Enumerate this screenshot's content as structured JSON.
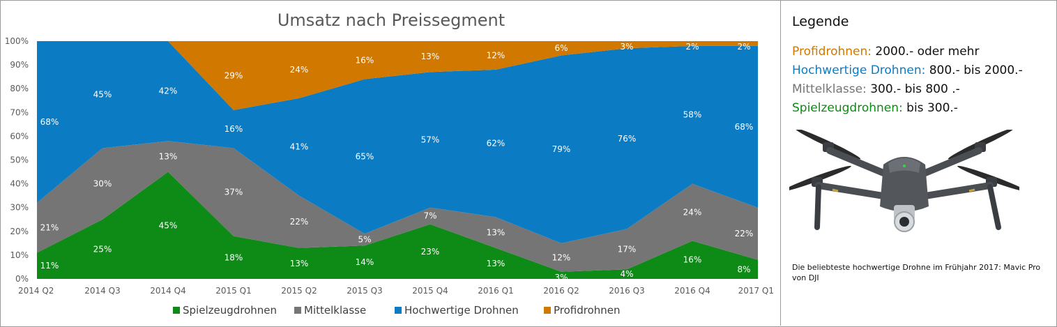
{
  "chart_data": {
    "type": "area",
    "stacked": true,
    "title": "Umsatz nach Preissegment",
    "categories": [
      "2014 Q2",
      "2014 Q3",
      "2014 Q4",
      "2015 Q1",
      "2015 Q2",
      "2015 Q3",
      "2015 Q4",
      "2016 Q1",
      "2016 Q2",
      "2016 Q3",
      "2016 Q4",
      "2017 Q1"
    ],
    "y_ticks": [
      "0%",
      "10%",
      "20%",
      "30%",
      "40%",
      "50%",
      "60%",
      "70%",
      "80%",
      "90%",
      "100%"
    ],
    "ylim": [
      0,
      100
    ],
    "legend_position": "bottom",
    "series": [
      {
        "name": "Spielzeugdrohnen",
        "color": "#0e8a16",
        "values": [
          11,
          25,
          45,
          18,
          13,
          14,
          23,
          13,
          3,
          4,
          16,
          8
        ],
        "labels": [
          "11%",
          "25%",
          "45%",
          "18%",
          "13%",
          "14%",
          "23%",
          "13%",
          "3%",
          "4%",
          "16%",
          "8%"
        ]
      },
      {
        "name": "Mittelklasse",
        "color": "#757575",
        "values": [
          21,
          30,
          13,
          37,
          22,
          5,
          7,
          13,
          12,
          17,
          24,
          22
        ],
        "labels": [
          "21%",
          "30%",
          "13%",
          "37%",
          "22%",
          "5%",
          "7%",
          "13%",
          "12%",
          "17%",
          "24%",
          "22%"
        ]
      },
      {
        "name": "Hochwertige Drohnen",
        "color": "#0b7cc4",
        "values": [
          68,
          45,
          42,
          16,
          41,
          65,
          57,
          62,
          79,
          76,
          58,
          68
        ],
        "labels": [
          "68%",
          "45%",
          "42%",
          "16%",
          "41%",
          "65%",
          "57%",
          "62%",
          "79%",
          "76%",
          "58%",
          "68%"
        ]
      },
      {
        "name": "Profidrohnen",
        "color": "#d07800",
        "values": [
          0,
          0,
          0,
          29,
          24,
          16,
          13,
          12,
          6,
          3,
          2,
          2
        ],
        "labels": [
          "",
          "",
          "",
          "29%",
          "24%",
          "16%",
          "13%",
          "12%",
          "6%",
          "3%",
          "2%",
          "2%"
        ]
      }
    ]
  },
  "legend": {
    "title": "Legende",
    "items": [
      {
        "name": "Profidrohnen:",
        "range": " 2000.- oder mehr",
        "color": "#d07800"
      },
      {
        "name": "Hochwertige Drohnen:",
        "range": " 800.- bis 2000.-",
        "color": "#0b7cc4"
      },
      {
        "name": "Mittelklasse:",
        "range": " 300.- bis 800 .-",
        "color": "#757575"
      },
      {
        "name": "Spielzeugdrohnen:",
        "range": " bis 300.-",
        "color": "#0e8a16"
      }
    ]
  },
  "image_caption": "Die beliebteste hochwertige Drohne im Frühjahr 2017: Mavic Pro von DJI",
  "drone_icon": "drone-photo"
}
